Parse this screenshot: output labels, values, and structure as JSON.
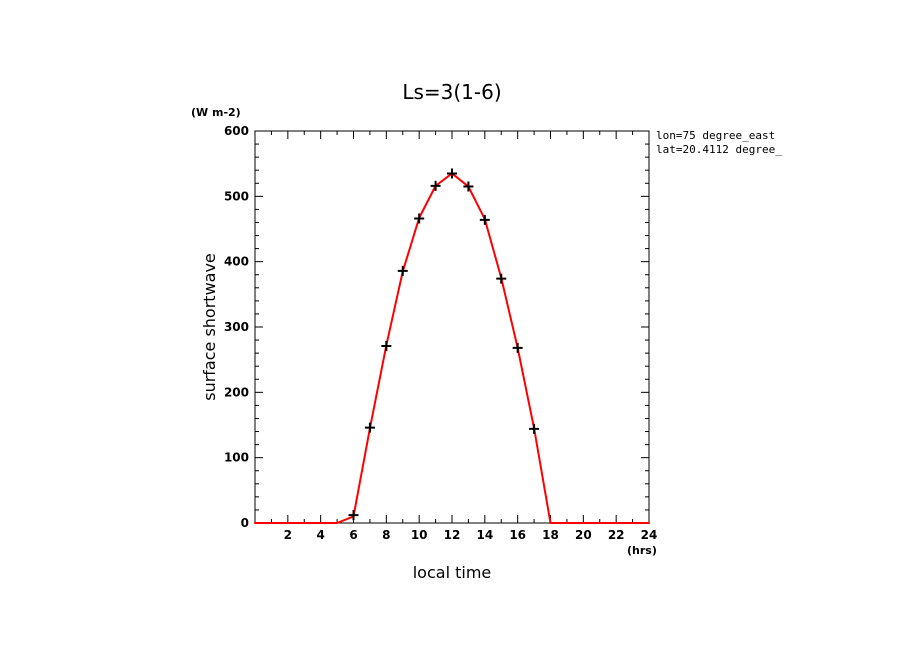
{
  "chart_data": {
    "type": "line",
    "title": "Ls=3(1-6)",
    "xlabel": "local time",
    "ylabel": "surface shortwave",
    "x_unit": "(hrs)",
    "y_unit": "(W m-2)",
    "annotations": [
      "lon=75 degree_east",
      "lat=20.4112 degree_"
    ],
    "xlim": [
      0,
      24
    ],
    "ylim": [
      0,
      600
    ],
    "x_ticks": [
      2,
      4,
      6,
      8,
      10,
      12,
      14,
      16,
      18,
      20,
      22,
      24
    ],
    "y_ticks": [
      0,
      100,
      200,
      300,
      400,
      500,
      600
    ],
    "grid": false,
    "series": [
      {
        "style": "line",
        "color": "#ff0000",
        "x": [
          0,
          1,
          2,
          3,
          4,
          5,
          6,
          7,
          8,
          9,
          10,
          11,
          12,
          13,
          14,
          15,
          16,
          17,
          18,
          19,
          20,
          21,
          22,
          23,
          24
        ],
        "values": [
          0,
          0,
          0,
          0,
          0,
          0,
          10,
          145,
          272,
          385,
          467,
          516,
          535,
          515,
          465,
          375,
          268,
          145,
          0,
          0,
          0,
          0,
          0,
          0,
          0
        ]
      },
      {
        "style": "markers",
        "marker": "plus",
        "color": "#000000",
        "x": [
          6,
          7,
          8,
          9,
          10,
          11,
          12,
          13,
          14,
          15,
          16,
          17
        ],
        "values": [
          12,
          146,
          271,
          386,
          466,
          516,
          535,
          515,
          464,
          374,
          268,
          144
        ]
      }
    ]
  }
}
